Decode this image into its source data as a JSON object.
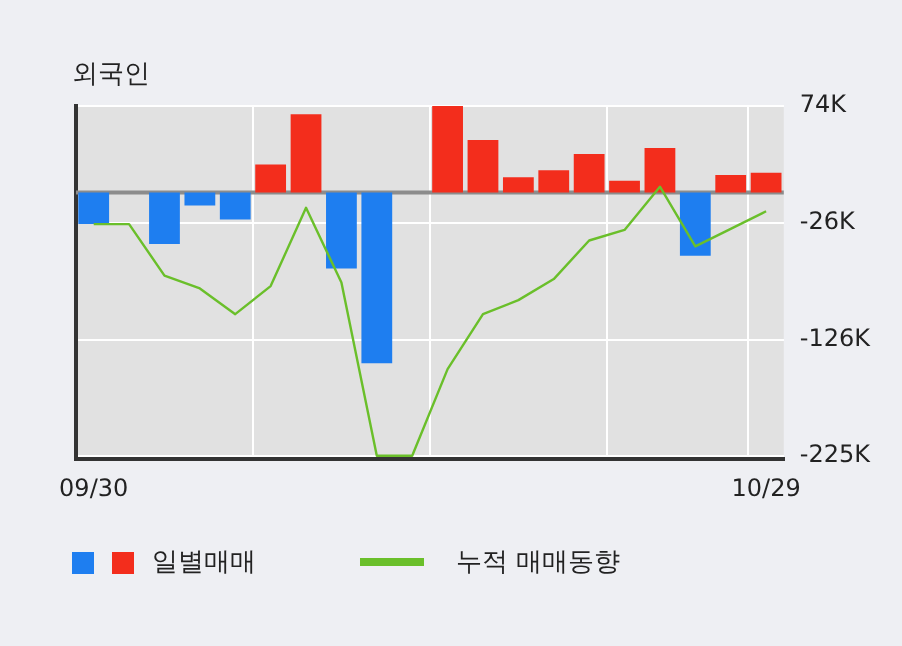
{
  "chart_data": {
    "type": "bar",
    "title": "외국인",
    "categories": [
      "09/30",
      null,
      null,
      null,
      null,
      null,
      null,
      null,
      null,
      null,
      null,
      null,
      null,
      null,
      null,
      null,
      null,
      null,
      null,
      "10/29"
    ],
    "series": [
      {
        "name": "일별매매",
        "colors": [
          "#1e7ef0",
          "#1e7ef0",
          "#1e7ef0",
          "#1e7ef0",
          "#1e7ef0",
          "#f32d1c",
          "#f32d1c",
          "#1e7ef0",
          "#1e7ef0",
          "#1e7ef0",
          "#f32d1c",
          "#f32d1c",
          "#f32d1c",
          "#f32d1c",
          "#f32d1c",
          "#f32d1c",
          "#f32d1c",
          "#1e7ef0",
          "#f32d1c",
          "#f32d1c"
        ],
        "values": [
          -27,
          0,
          -44,
          -11,
          -23,
          24,
          67,
          -65,
          -146,
          0,
          74,
          45,
          13,
          19,
          33,
          10,
          38,
          -54,
          15,
          17
        ]
      },
      {
        "name": "누적 매매동향",
        "type": "line",
        "color": "#6abf2a",
        "values": [
          -27,
          -27,
          -71,
          -82,
          -104,
          -80,
          -13,
          -77,
          -225,
          -225,
          -151,
          -104,
          -92,
          -74,
          -41,
          -32,
          5,
          -46,
          -31,
          -16
        ]
      }
    ],
    "ylim": [
      -228,
      74
    ],
    "yticks": [
      {
        "value": 74,
        "label": "74K"
      },
      {
        "value": -26,
        "label": "-26K"
      },
      {
        "value": -126,
        "label": "-126K"
      },
      {
        "value": -225,
        "label": "-225K"
      }
    ],
    "ref_lines": [
      {
        "axis": "y",
        "value": 0,
        "color": "#8c8c8c"
      }
    ],
    "grid": true,
    "legend": "bottom",
    "marker": "none",
    "line_style": "solid"
  }
}
